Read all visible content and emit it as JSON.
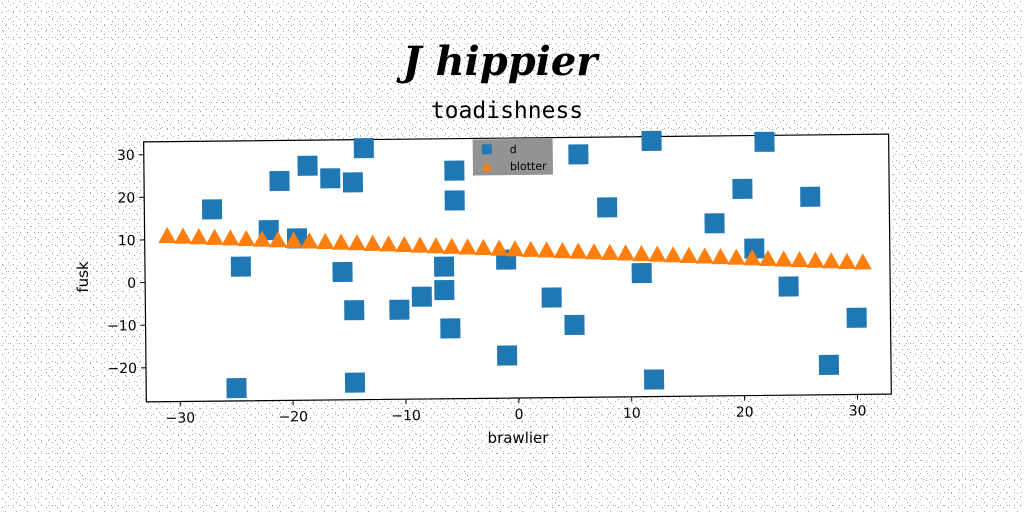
{
  "signature": "J hippier",
  "chart_data": {
    "type": "scatter",
    "title": "toadishness",
    "xlabel": "brawlier",
    "ylabel": "fusk",
    "xlim": [
      -33,
      33
    ],
    "ylim": [
      -28,
      33
    ],
    "xticks": [
      -30,
      -20,
      -10,
      0,
      10,
      20,
      30
    ],
    "yticks": [
      -20,
      -10,
      0,
      10,
      20,
      30
    ],
    "xtick_labels": [
      "−30",
      "−20",
      "−10",
      "0",
      "10",
      "20",
      "30"
    ],
    "ytick_labels": [
      "−20",
      "−10",
      "0",
      "10",
      "20",
      "30"
    ],
    "legend_position": "top-center",
    "grid": false,
    "series": [
      {
        "name": "d",
        "marker": "square",
        "color": "#1f77b4",
        "points": [
          [
            -27,
            17
          ],
          [
            -25,
            -25
          ],
          [
            -24.5,
            3.5
          ],
          [
            -22,
            12
          ],
          [
            -21,
            23.5
          ],
          [
            -19.5,
            10
          ],
          [
            -18.5,
            27
          ],
          [
            -16.5,
            24
          ],
          [
            -15.5,
            2
          ],
          [
            -14.5,
            23
          ],
          [
            -14.5,
            -7
          ],
          [
            -14.5,
            -24
          ],
          [
            -13.5,
            31
          ],
          [
            -10.5,
            -7
          ],
          [
            -8.5,
            -4
          ],
          [
            -6.5,
            3
          ],
          [
            -6.5,
            -2.5
          ],
          [
            -6,
            -11.5
          ],
          [
            -5.5,
            25.5
          ],
          [
            -5.5,
            18.5
          ],
          [
            -1,
            4.5
          ],
          [
            -1,
            -18
          ],
          [
            3,
            -4.5
          ],
          [
            5,
            -11
          ],
          [
            5.5,
            29
          ],
          [
            8,
            16.5
          ],
          [
            11,
            1
          ],
          [
            12,
            32
          ],
          [
            12,
            -24
          ],
          [
            17.5,
            12.5
          ],
          [
            20,
            20.5
          ],
          [
            21,
            6.5
          ],
          [
            22,
            31.5
          ],
          [
            24,
            -2.5
          ],
          [
            26,
            18.5
          ],
          [
            27.5,
            -21
          ],
          [
            30,
            -10
          ]
        ]
      },
      {
        "name": "blotter",
        "marker": "triangle",
        "color": "#ff7f0e",
        "points": [
          [
            -31,
            10.9
          ],
          [
            -29.6,
            10.72
          ],
          [
            -28.2,
            10.54
          ],
          [
            -26.8,
            10.36
          ],
          [
            -25.4,
            10.18
          ],
          [
            -24,
            10
          ],
          [
            -22.6,
            9.82
          ],
          [
            -21.2,
            9.64
          ],
          [
            -19.8,
            9.46
          ],
          [
            -18.4,
            9.28
          ],
          [
            -17,
            9.1
          ],
          [
            -15.6,
            8.92
          ],
          [
            -14.2,
            8.74
          ],
          [
            -12.8,
            8.56
          ],
          [
            -11.4,
            8.38
          ],
          [
            -10,
            8.2
          ],
          [
            -8.6,
            8.02
          ],
          [
            -7.2,
            7.84
          ],
          [
            -5.8,
            7.66
          ],
          [
            -4.4,
            7.48
          ],
          [
            -3,
            7.3
          ],
          [
            -1.6,
            7.12
          ],
          [
            -0.2,
            6.94
          ],
          [
            1.2,
            6.76
          ],
          [
            2.6,
            6.58
          ],
          [
            4,
            6.4
          ],
          [
            5.4,
            6.22
          ],
          [
            6.8,
            6.04
          ],
          [
            8.2,
            5.86
          ],
          [
            9.6,
            5.68
          ],
          [
            11,
            5.5
          ],
          [
            12.4,
            5.32
          ],
          [
            13.8,
            5.14
          ],
          [
            15.2,
            4.96
          ],
          [
            16.6,
            4.78
          ],
          [
            18,
            4.6
          ],
          [
            19.4,
            4.42
          ],
          [
            20.8,
            4.24
          ],
          [
            22.2,
            4.06
          ],
          [
            23.6,
            3.88
          ],
          [
            25,
            3.7
          ],
          [
            26.4,
            3.52
          ],
          [
            27.8,
            3.34
          ],
          [
            29.2,
            3.16
          ],
          [
            30.6,
            2.98
          ]
        ]
      }
    ]
  }
}
